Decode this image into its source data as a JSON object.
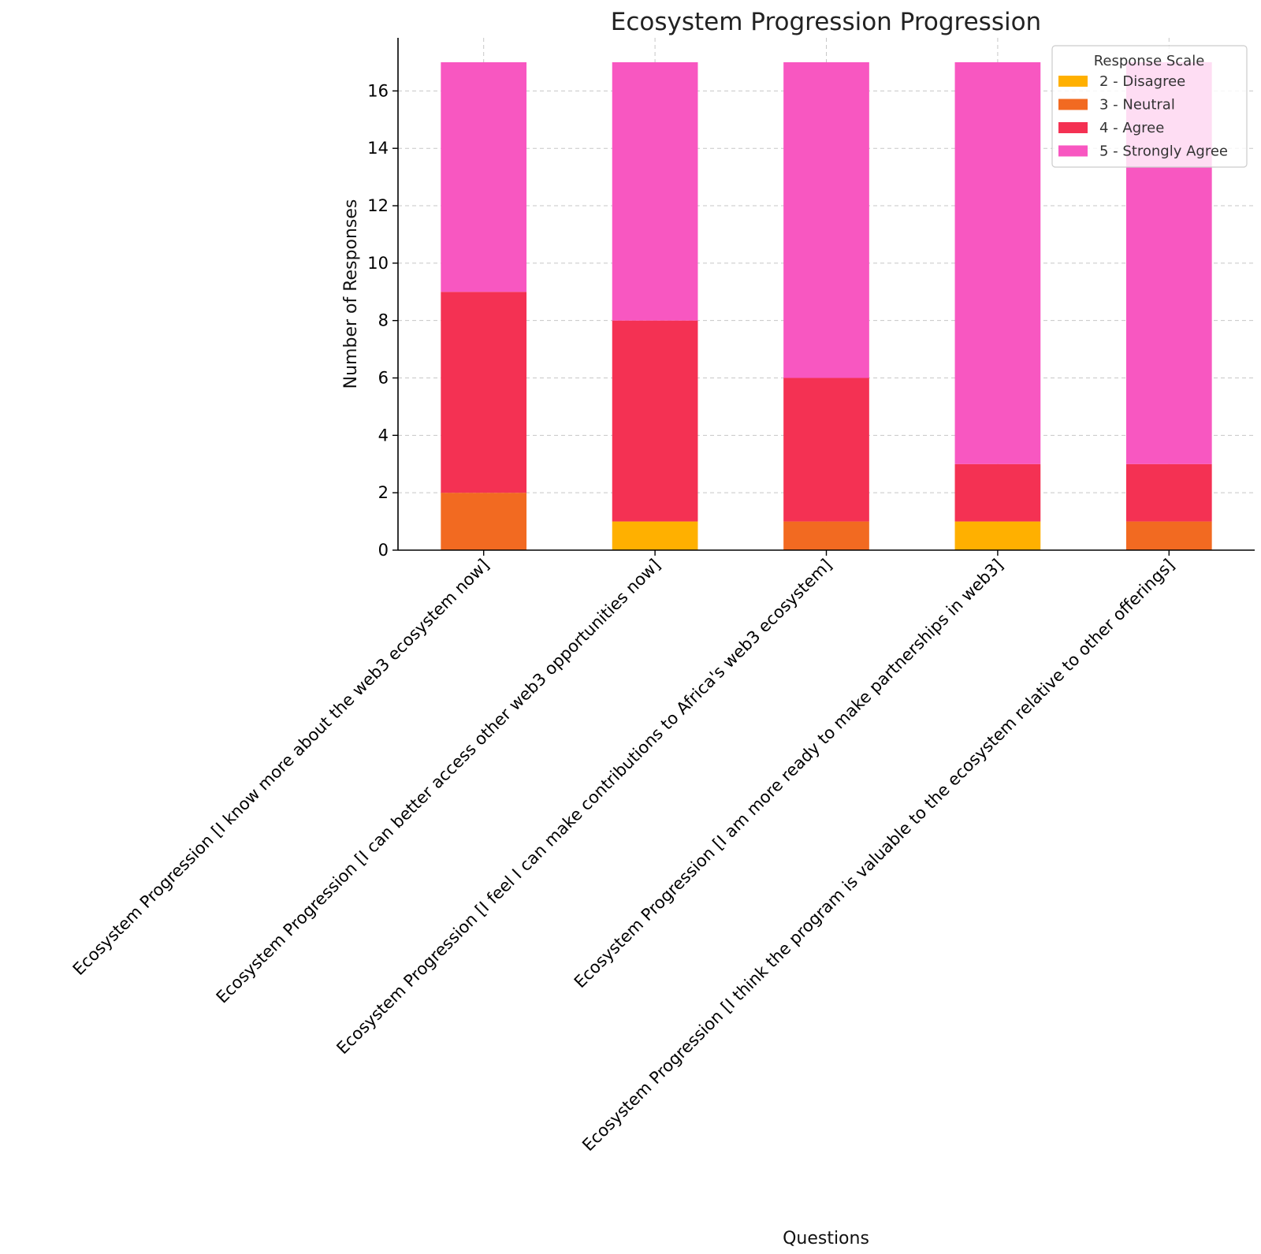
{
  "chart_data": {
    "type": "bar",
    "stacked": true,
    "title": "Ecosystem Progression Progression",
    "xlabel": "Questions",
    "ylabel": "Number of Responses",
    "ylim": [
      0,
      17.85
    ],
    "yticks": [
      0,
      2,
      4,
      6,
      8,
      10,
      12,
      14,
      16
    ],
    "grid": true,
    "legend": {
      "title": "Response Scale",
      "placement": "top-right"
    },
    "categories": [
      "Ecosystem Progression [I know more about the web3 ecosystem now]",
      "Ecosystem Progression [I can better access other web3 opportunities now]",
      "Ecosystem Progression [I feel I can make contributions to Africa's web3 ecosystem]",
      "Ecosystem Progression [I am more ready to make partnerships in web3]",
      "Ecosystem Progression [I think the program is valuable to the ecosystem relative to other offerings]"
    ],
    "series": [
      {
        "name": "2 - Disagree",
        "color": "#FFB000",
        "values": [
          0,
          1,
          0,
          1,
          0
        ]
      },
      {
        "name": "3 - Neutral",
        "color": "#F26A21",
        "values": [
          2,
          0,
          1,
          0,
          1
        ]
      },
      {
        "name": "4 - Agree",
        "color": "#F43153",
        "values": [
          7,
          7,
          5,
          2,
          2
        ]
      },
      {
        "name": "5 - Strongly Agree",
        "color": "#F857C1",
        "values": [
          8,
          9,
          11,
          14,
          14
        ]
      }
    ]
  }
}
